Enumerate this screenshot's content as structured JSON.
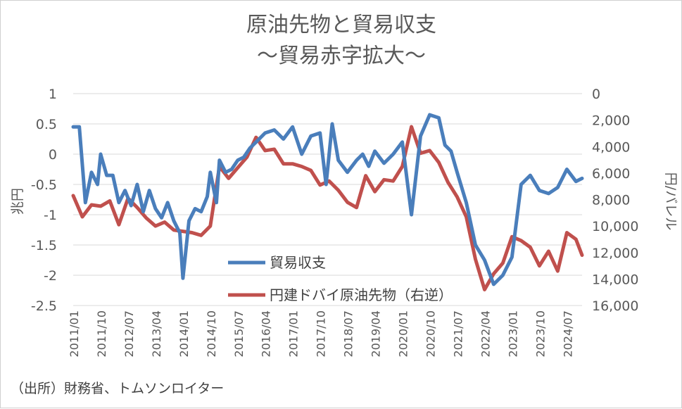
{
  "chart_data": {
    "type": "line",
    "title": "原油先物と貿易収支",
    "subtitle": "～貿易赤字拡大～",
    "ylabel_left": "兆円",
    "ylabel_right": "円/バレル",
    "source": "（出所）財務省、トムソンロイター",
    "ylim_left": [
      -2.5,
      1
    ],
    "yticks_left": [
      "1",
      "0.5",
      "0",
      "-0.5",
      "-1",
      "-1.5",
      "-2",
      "-2.5"
    ],
    "ylim_right": [
      0,
      16000
    ],
    "right_axis_reversed": true,
    "yticks_right": [
      "0",
      "2,000",
      "4,000",
      "6,000",
      "8,000",
      "10,000",
      "12,000",
      "14,000",
      "16,000"
    ],
    "x_tick_labels": [
      "2011/01",
      "2011/10",
      "2012/07",
      "2013/04",
      "2014/01",
      "2014/10",
      "2015/07",
      "2016/04",
      "2017/01",
      "2017/10",
      "2018/07",
      "2019/04",
      "2020/01",
      "2020/10",
      "2021/07",
      "2022/04",
      "2023/01",
      "2023/10",
      "2024/07"
    ],
    "x_range": [
      "2011/01",
      "2024/12"
    ],
    "grid": true,
    "legend_position": "inside-bottom-center",
    "series": [
      {
        "name": "貿易収支",
        "axis": "left",
        "color": "#4a7ebb",
        "points": [
          [
            "2011/01",
            0.45
          ],
          [
            "2011/03",
            0.45
          ],
          [
            "2011/05",
            -0.8
          ],
          [
            "2011/07",
            -0.3
          ],
          [
            "2011/09",
            -0.5
          ],
          [
            "2011/10",
            0.0
          ],
          [
            "2011/12",
            -0.35
          ],
          [
            "2012/02",
            -0.35
          ],
          [
            "2012/04",
            -0.8
          ],
          [
            "2012/06",
            -0.6
          ],
          [
            "2012/08",
            -0.85
          ],
          [
            "2012/10",
            -0.5
          ],
          [
            "2012/12",
            -0.95
          ],
          [
            "2013/02",
            -0.6
          ],
          [
            "2013/04",
            -0.9
          ],
          [
            "2013/06",
            -1.05
          ],
          [
            "2013/08",
            -0.8
          ],
          [
            "2013/10",
            -1.1
          ],
          [
            "2013/12",
            -1.3
          ],
          [
            "2014/01",
            -2.05
          ],
          [
            "2014/03",
            -1.1
          ],
          [
            "2014/05",
            -0.9
          ],
          [
            "2014/07",
            -0.95
          ],
          [
            "2014/09",
            -0.7
          ],
          [
            "2014/10",
            -0.3
          ],
          [
            "2014/12",
            -0.8
          ],
          [
            "2015/01",
            -0.1
          ],
          [
            "2015/03",
            -0.3
          ],
          [
            "2015/05",
            -0.25
          ],
          [
            "2015/07",
            -0.1
          ],
          [
            "2015/09",
            -0.05
          ],
          [
            "2015/11",
            0.1
          ],
          [
            "2016/01",
            0.2
          ],
          [
            "2016/04",
            0.35
          ],
          [
            "2016/07",
            0.4
          ],
          [
            "2016/10",
            0.25
          ],
          [
            "2017/01",
            0.45
          ],
          [
            "2017/04",
            0.0
          ],
          [
            "2017/07",
            0.3
          ],
          [
            "2017/10",
            0.35
          ],
          [
            "2017/12",
            -0.5
          ],
          [
            "2018/02",
            0.5
          ],
          [
            "2018/04",
            -0.1
          ],
          [
            "2018/07",
            -0.3
          ],
          [
            "2018/10",
            -0.1
          ],
          [
            "2018/12",
            0.0
          ],
          [
            "2019/02",
            -0.2
          ],
          [
            "2019/04",
            0.05
          ],
          [
            "2019/07",
            -0.15
          ],
          [
            "2019/10",
            0.0
          ],
          [
            "2020/01",
            0.2
          ],
          [
            "2020/04",
            -1.0
          ],
          [
            "2020/07",
            0.3
          ],
          [
            "2020/10",
            0.65
          ],
          [
            "2021/01",
            0.6
          ],
          [
            "2021/03",
            0.15
          ],
          [
            "2021/05",
            0.05
          ],
          [
            "2021/07",
            -0.3
          ],
          [
            "2021/10",
            -0.8
          ],
          [
            "2022/01",
            -1.5
          ],
          [
            "2022/04",
            -1.75
          ],
          [
            "2022/07",
            -2.15
          ],
          [
            "2022/10",
            -2.0
          ],
          [
            "2023/01",
            -1.7
          ],
          [
            "2023/04",
            -0.5
          ],
          [
            "2023/07",
            -0.35
          ],
          [
            "2023/10",
            -0.6
          ],
          [
            "2024/01",
            -0.65
          ],
          [
            "2024/04",
            -0.55
          ],
          [
            "2024/07",
            -0.25
          ],
          [
            "2024/10",
            -0.45
          ],
          [
            "2024/12",
            -0.4
          ]
        ]
      },
      {
        "name": "円建ドバイ原油先物（右逆）",
        "axis": "right",
        "color": "#c0504d",
        "points": [
          [
            "2011/01",
            7700
          ],
          [
            "2011/04",
            9300
          ],
          [
            "2011/07",
            8400
          ],
          [
            "2011/10",
            8500
          ],
          [
            "2012/01",
            8100
          ],
          [
            "2012/04",
            9900
          ],
          [
            "2012/07",
            7900
          ],
          [
            "2012/10",
            8600
          ],
          [
            "2013/01",
            9400
          ],
          [
            "2013/04",
            10000
          ],
          [
            "2013/07",
            9700
          ],
          [
            "2013/10",
            10300
          ],
          [
            "2014/01",
            10400
          ],
          [
            "2014/04",
            10500
          ],
          [
            "2014/07",
            10700
          ],
          [
            "2014/10",
            10000
          ],
          [
            "2015/01",
            5500
          ],
          [
            "2015/04",
            6400
          ],
          [
            "2015/07",
            5600
          ],
          [
            "2015/10",
            4800
          ],
          [
            "2016/01",
            3300
          ],
          [
            "2016/04",
            4300
          ],
          [
            "2016/07",
            4200
          ],
          [
            "2016/10",
            5300
          ],
          [
            "2017/01",
            5300
          ],
          [
            "2017/04",
            5500
          ],
          [
            "2017/07",
            5800
          ],
          [
            "2017/10",
            6900
          ],
          [
            "2018/01",
            6600
          ],
          [
            "2018/04",
            7300
          ],
          [
            "2018/07",
            8200
          ],
          [
            "2018/10",
            8600
          ],
          [
            "2019/01",
            6200
          ],
          [
            "2019/04",
            7400
          ],
          [
            "2019/07",
            6500
          ],
          [
            "2019/10",
            6600
          ],
          [
            "2020/01",
            5500
          ],
          [
            "2020/04",
            2500
          ],
          [
            "2020/07",
            4500
          ],
          [
            "2020/10",
            4300
          ],
          [
            "2021/01",
            5200
          ],
          [
            "2021/04",
            6700
          ],
          [
            "2021/07",
            7800
          ],
          [
            "2021/10",
            9300
          ],
          [
            "2022/01",
            12500
          ],
          [
            "2022/04",
            14800
          ],
          [
            "2022/07",
            13600
          ],
          [
            "2022/10",
            12800
          ],
          [
            "2023/01",
            10800
          ],
          [
            "2023/04",
            11100
          ],
          [
            "2023/07",
            11600
          ],
          [
            "2023/10",
            13000
          ],
          [
            "2024/01",
            11900
          ],
          [
            "2024/04",
            13400
          ],
          [
            "2024/07",
            10500
          ],
          [
            "2024/10",
            11000
          ],
          [
            "2024/12",
            12200
          ]
        ]
      }
    ]
  }
}
